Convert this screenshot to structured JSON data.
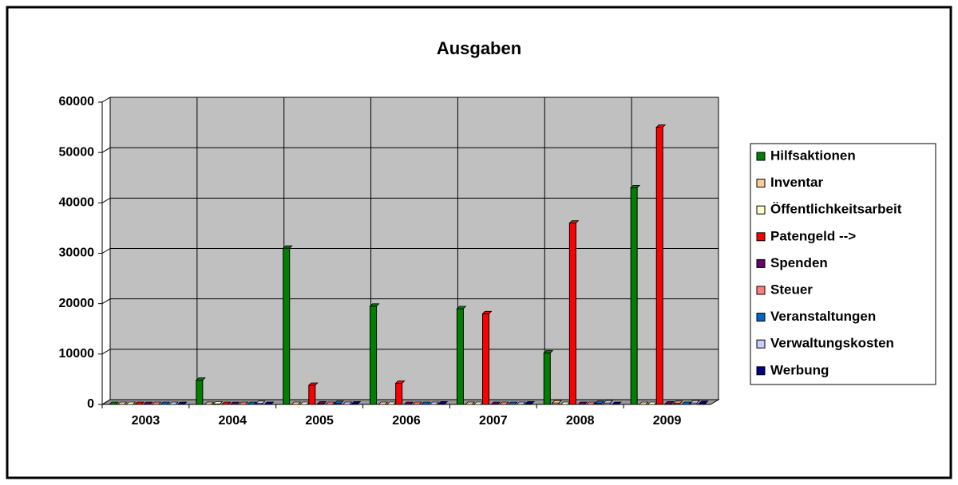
{
  "chart_data": {
    "type": "bar",
    "title": "Ausgaben",
    "categories": [
      "2003",
      "2004",
      "2005",
      "2006",
      "2007",
      "2008",
      "2009"
    ],
    "series": [
      {
        "name": "Hilfsaktionen",
        "color": "#008000",
        "values": [
          0,
          4800,
          31000,
          19500,
          19000,
          10200,
          43000
        ]
      },
      {
        "name": "Inventar",
        "color": "#FFCC99",
        "values": [
          0,
          0,
          0,
          0,
          0,
          300,
          0
        ]
      },
      {
        "name": "Öffentlichkeitsarbeit",
        "color": "#FFFFCC",
        "values": [
          0,
          100,
          0,
          0,
          0,
          0,
          0
        ]
      },
      {
        "name": "Patengeld -->",
        "color": "#FF0000",
        "values": [
          0,
          0,
          3800,
          4200,
          18000,
          36000,
          55000
        ]
      },
      {
        "name": "Spenden",
        "color": "#660066",
        "values": [
          0,
          0,
          100,
          0,
          0,
          0,
          100
        ]
      },
      {
        "name": "Steuer",
        "color": "#FF8080",
        "values": [
          0,
          0,
          0,
          0,
          0,
          0,
          200
        ]
      },
      {
        "name": "Veranstaltungen",
        "color": "#0066CC",
        "values": [
          0,
          0,
          200,
          0,
          0,
          200,
          0
        ]
      },
      {
        "name": "Verwaltungskosten",
        "color": "#CCCCFF",
        "values": [
          0,
          200,
          0,
          0,
          0,
          300,
          300
        ]
      },
      {
        "name": "Werbung",
        "color": "#000080",
        "values": [
          0,
          0,
          100,
          100,
          100,
          0,
          200
        ]
      }
    ],
    "ylim": [
      0,
      60000
    ],
    "yticks": [
      0,
      10000,
      20000,
      30000,
      40000,
      50000,
      60000
    ],
    "grid": true,
    "legend": "right",
    "background": "#C0C0C0"
  }
}
